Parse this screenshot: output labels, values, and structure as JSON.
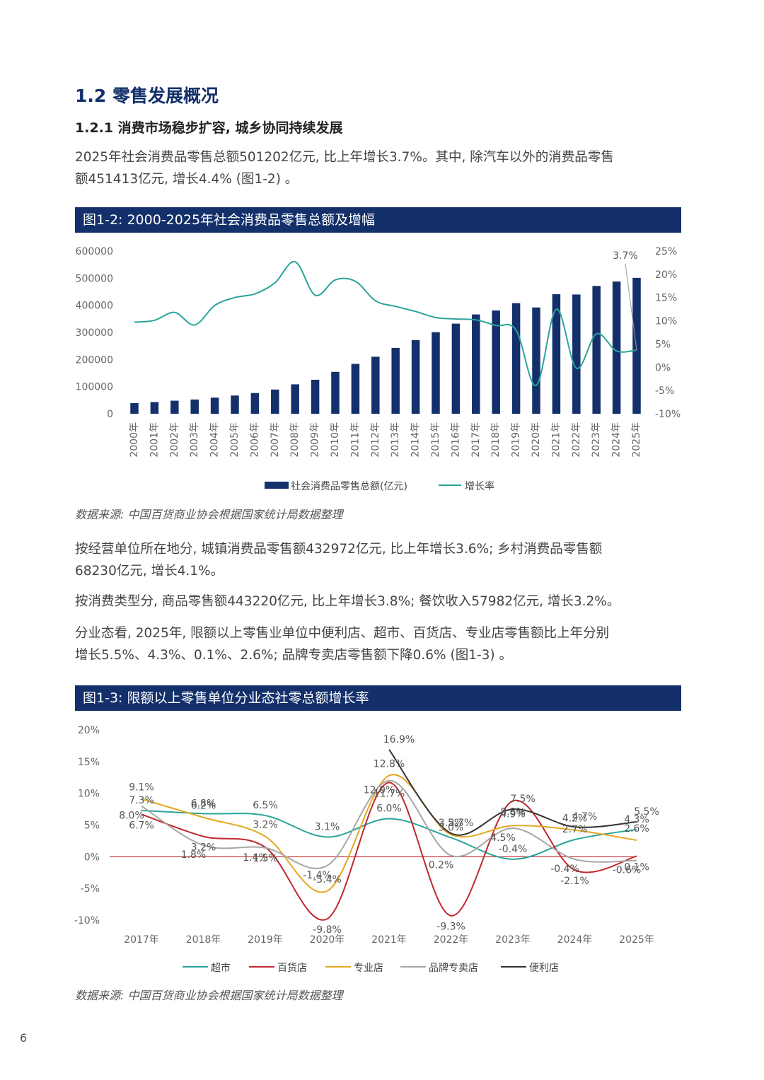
{
  "section": {
    "title": "1.2 零售发展概况",
    "subtitle": "1.2.1 消费市场稳步扩容, 城乡协同持续发展"
  },
  "paragraphs": {
    "p1": [
      "2025年社会消费品零售总额501202亿元, 比上年增长3.7%。其中, 除汽车以外的消费品零售",
      "额451413亿元, 增长4.4% (图1-2) 。"
    ],
    "p2": [
      "按经营单位所在地分, 城镇消费品零售额432972亿元, 比上年增长3.6%; 乡村消费品零售额",
      "68230亿元, 增长4.1%。"
    ],
    "p3": [
      "按消费类型分, 商品零售额443220亿元, 比上年增长3.8%; 餐饮收入57982亿元, 增长3.2%。"
    ],
    "p4": [
      "分业态看, 2025年, 限额以上零售业单位中便利店、超市、百货店、专业店零售额比上年分别",
      "增长5.5%、4.3%、0.1%、2.6%; 品牌专卖店零售额下降0.6% (图1-3) 。"
    ]
  },
  "figure1": {
    "title": "图1-2: 2000-2025年社会消费品零售总额及增幅",
    "source": "数据来源: 中国百货商业协会根据国家统计局数据整理"
  },
  "figure2": {
    "title": "图1-3: 限额以上零售单位分业态社零总额增长率",
    "source": "数据来源: 中国百货商业协会根据国家统计局数据整理"
  },
  "page_number": "6",
  "chart_data": [
    {
      "type": "bar",
      "categories": [
        "2000年",
        "2001年",
        "2002年",
        "2003年",
        "2004年",
        "2005年",
        "2006年",
        "2007年",
        "2008年",
        "2009年",
        "2010年",
        "2011年",
        "2012年",
        "2013年",
        "2014年",
        "2015年",
        "2016年",
        "2017年",
        "2018年",
        "2019年",
        "2020年",
        "2021年",
        "2022年",
        "2023年",
        "2024年",
        "2025年"
      ],
      "series": [
        {
          "name": "社会消费品零售总额(亿元)",
          "kind": "bar",
          "axis": "left",
          "color": "#13306b",
          "values": [
            39106,
            43055,
            48136,
            52516,
            59501,
            67177,
            76410,
            89210,
            108488,
            125343,
            154554,
            183919,
            210307,
            242843,
            271896,
            300931,
            332316,
            366262,
            380987,
            408017,
            391981,
            440823,
            439733,
            471495,
            487895,
            501202
          ]
        },
        {
          "name": "增长率",
          "kind": "line",
          "axis": "right",
          "color": "#2aa59a",
          "values": [
            9.7,
            10.1,
            11.8,
            9.1,
            13.3,
            15.0,
            15.8,
            18.2,
            22.7,
            15.5,
            18.8,
            18.5,
            14.3,
            13.1,
            12.0,
            10.7,
            10.4,
            10.2,
            9.0,
            8.0,
            -3.9,
            12.5,
            -0.2,
            7.2,
            3.5,
            3.7
          ]
        }
      ],
      "left_ticks": [
        "600000",
        "500000",
        "400000",
        "300000",
        "200000",
        "100000",
        "0"
      ],
      "right_ticks": [
        "25%",
        "20%",
        "15%",
        "10%",
        "5%",
        "0%",
        "-5%",
        "-10%"
      ],
      "ylim_left": [
        0,
        600000
      ],
      "ylim_right": [
        -10,
        25
      ],
      "annotation": "3.7%",
      "legend": "bottom"
    },
    {
      "type": "line",
      "x": [
        "2017年",
        "2018年",
        "2019年",
        "2020年",
        "2021年",
        "2022年",
        "2023年",
        "2024年",
        "2025年"
      ],
      "y_ticks": [
        "20%",
        "15%",
        "10%",
        "5%",
        "0%",
        "-5%",
        "-10%"
      ],
      "ylim": [
        -10,
        20
      ],
      "series": [
        {
          "name": "超市",
          "color": "#2aa59a",
          "values": [
            7.3,
            6.8,
            6.5,
            3.1,
            6.0,
            3.0,
            -0.4,
            2.7,
            4.3
          ],
          "labels": [
            "7.3%",
            "6.8%",
            "6.5%",
            "3.1%",
            "6.0%",
            "3.0%",
            "-0.4%",
            "2.7%",
            "4.3%"
          ]
        },
        {
          "name": "百货店",
          "color": "#c0272d",
          "values": [
            6.7,
            3.2,
            1.5,
            -9.8,
            11.7,
            -9.3,
            8.8,
            -2.1,
            0.1
          ],
          "labels": [
            "6.7%",
            "3.2%",
            "1.5%",
            "-9.8%",
            "11.7%",
            "-9.3%",
            "8.8%",
            "-2.1%",
            "0.1%"
          ]
        },
        {
          "name": "专业店",
          "color": "#e3a820",
          "values": [
            9.1,
            6.2,
            3.2,
            -5.4,
            12.8,
            3.5,
            4.9,
            4.2,
            2.6
          ],
          "labels": [
            "9.1%",
            "6.2%",
            "3.2%",
            "-5.4%",
            "12.8%",
            "3.5%",
            "4.9%",
            "4.2%",
            "2.6%"
          ]
        },
        {
          "name": "品牌专卖店",
          "color": "#a6a6a6",
          "values": [
            8.0,
            1.8,
            1.4,
            -1.4,
            12.0,
            0.2,
            4.5,
            -0.4,
            -0.6
          ],
          "labels": [
            "8.0%",
            "1.8%",
            "1.4%",
            "-1.4%",
            "12.0%",
            "0.2%",
            "4.5%",
            "-0.4%",
            "-0.6%"
          ]
        },
        {
          "name": "便利店",
          "color": "#333333",
          "values": [
            null,
            null,
            null,
            null,
            16.9,
            3.7,
            7.5,
            4.7,
            5.5
          ],
          "labels": [
            "",
            "",
            "",
            "",
            "16.9%",
            "3.7%",
            "7.5%",
            "4.7%",
            "5.5%"
          ]
        }
      ],
      "legend": "bottom"
    }
  ]
}
